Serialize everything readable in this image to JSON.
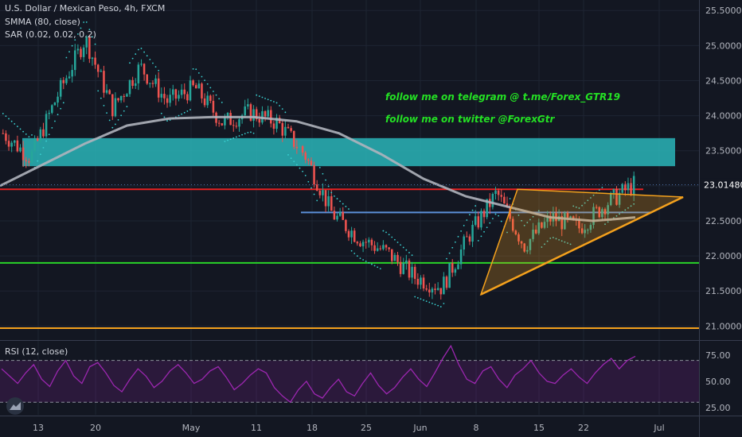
{
  "header": {
    "symbol_line": "U.S. Dollar / Mexican Peso, 4h, FXCM",
    "indicator_1": "SMMA (80, close)",
    "indicator_2": "SAR (0.02, 0.02, 0.2)"
  },
  "notes": {
    "telegram": "follow me on telegram @ t.me/Forex_GTR19",
    "twitter": "follow me on twitter @ForexGtr"
  },
  "colors": {
    "background": "#131722",
    "bull": "#26a69a",
    "bear": "#ef5350",
    "smma": "#b0b4bc",
    "sar": "#3ad1d1",
    "zone": "#2ab5b8",
    "red_line": "#e52222",
    "green_line": "#28d428",
    "orange_line": "#f4a11d",
    "blue_line": "#5b8fd8",
    "rsi": "#9c27b0",
    "price_tag": "#131722"
  },
  "chart_data": [
    {
      "type": "candlestick",
      "title": "U.S. Dollar / Mexican Peso, 4h, FXCM",
      "y_axis_labels": [
        "25.50000",
        "25.00000",
        "24.50000",
        "24.00000",
        "23.50000",
        "23.00000",
        "22.50000",
        "22.00000",
        "21.50000",
        "21.00000"
      ],
      "ylim": [
        20.8,
        25.65
      ],
      "current_price": "23.01480",
      "x_axis_labels": [
        "13",
        "20",
        "May",
        "11",
        "18",
        "25",
        "Jun",
        "8",
        "15",
        "22",
        "Jul"
      ],
      "close_path": [
        [
          "13",
          23.75
        ],
        [
          "16",
          23.4
        ],
        [
          "20",
          24.3
        ],
        [
          "24",
          25.1
        ],
        [
          "28",
          24.1
        ],
        [
          "May",
          24.7
        ],
        [
          "4",
          24.2
        ],
        [
          "7",
          24.4
        ],
        [
          "11",
          23.9
        ],
        [
          "14",
          24.05
        ],
        [
          "18",
          23.9
        ],
        [
          "21",
          23.45
        ],
        [
          "25",
          22.6
        ],
        [
          "28",
          22.25
        ],
        [
          "Jun",
          22.05
        ],
        [
          "4",
          21.7
        ],
        [
          "8",
          21.55
        ],
        [
          "10",
          22.3
        ],
        [
          "12",
          22.9
        ],
        [
          "15",
          22.15
        ],
        [
          "18",
          22.55
        ],
        [
          "22",
          22.4
        ],
        [
          "26",
          22.75
        ],
        [
          "29",
          23.02
        ]
      ],
      "series": [
        {
          "name": "SMMA (80, close)",
          "values": [
            23.0,
            23.3,
            23.6,
            23.86,
            23.96,
            23.98,
            23.98,
            23.92,
            23.75,
            23.45,
            23.1,
            22.85,
            22.7,
            22.55,
            22.5,
            22.55
          ]
        },
        {
          "name": "SAR (0.02, 0.02, 0.2)"
        }
      ],
      "annotations": {
        "resistance_zone": [
          23.28,
          23.68
        ],
        "red_line": 22.95,
        "blue_line": 22.62,
        "green_line": 21.9,
        "orange_line": 20.97,
        "triangle_top": 22.95,
        "triangle_base_start": 21.45,
        "triangle_apex": 22.84
      }
    },
    {
      "type": "line",
      "title": "RSI (12, close)",
      "y_axis_labels": [
        "75.00",
        "50.00",
        "25.00"
      ],
      "ylim": [
        18,
        88
      ],
      "band": [
        30,
        70
      ],
      "values": [
        62,
        55,
        48,
        58,
        66,
        52,
        45,
        60,
        70,
        55,
        48,
        64,
        68,
        58,
        46,
        40,
        52,
        62,
        55,
        44,
        50,
        60,
        66,
        58,
        48,
        52,
        60,
        64,
        54,
        42,
        48,
        56,
        62,
        58,
        44,
        36,
        30,
        42,
        50,
        38,
        34,
        44,
        52,
        40,
        36,
        48,
        58,
        46,
        38,
        44,
        54,
        62,
        52,
        45,
        58,
        72,
        84,
        66,
        52,
        48,
        60,
        64,
        52,
        44,
        56,
        62,
        70,
        58,
        50,
        48,
        56,
        62,
        54,
        48,
        58,
        66,
        72,
        62,
        70,
        74
      ]
    }
  ]
}
